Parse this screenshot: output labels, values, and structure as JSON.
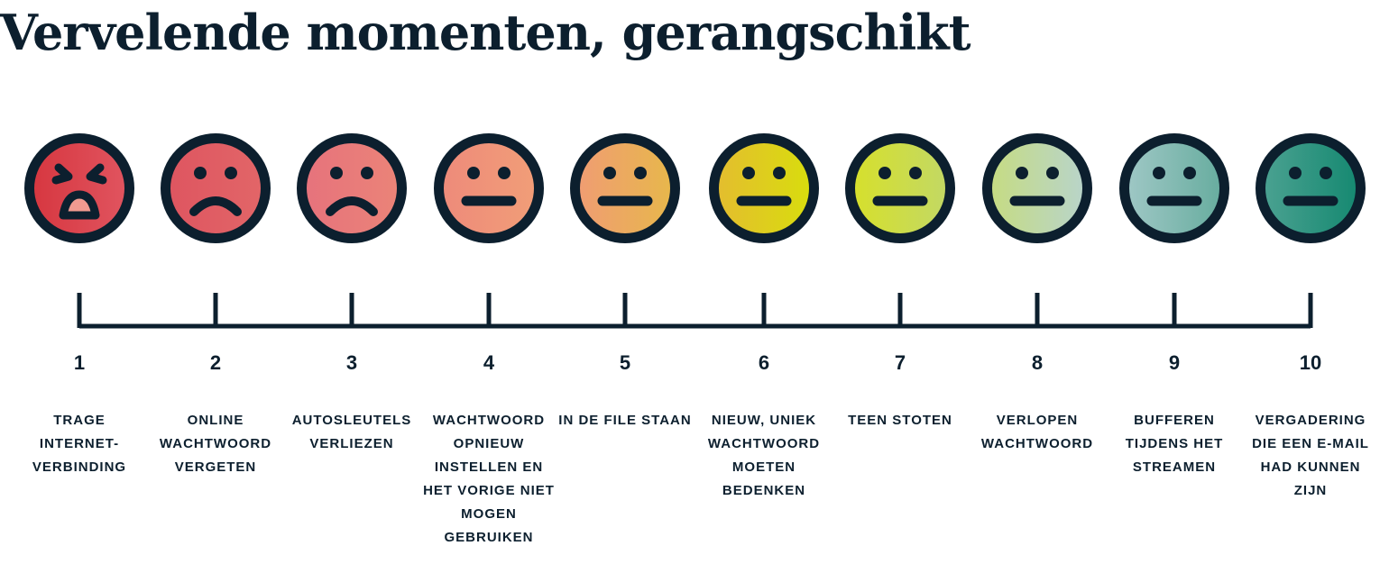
{
  "title": "Vervelende momenten, gerangschikt",
  "colors": {
    "ink": "#0c1f2e"
  },
  "items": [
    {
      "rank": "1",
      "label": "Trage internet-verbinding",
      "face": "angry-face-icon",
      "colors": [
        "#d6363f",
        "#e15560"
      ]
    },
    {
      "rank": "2",
      "label": "Online wachtwoord vergeten",
      "face": "sad-face-icon",
      "colors": [
        "#de5560",
        "#e26668"
      ]
    },
    {
      "rank": "3",
      "label": "Autosleutels verliezen",
      "face": "sad-face-icon",
      "colors": [
        "#e6727c",
        "#eb8478"
      ]
    },
    {
      "rank": "4",
      "label": "Wachtwoord opnieuw instellen en het vorige niet mogen gebruiken",
      "face": "neutral-face-icon",
      "colors": [
        "#ee8a7a",
        "#f19e78"
      ]
    },
    {
      "rank": "5",
      "label": "In de file staan",
      "face": "neutral-face-icon",
      "colors": [
        "#f09c74",
        "#e7b84a"
      ]
    },
    {
      "rank": "6",
      "label": "Nieuw, uniek wachtwoord moeten bedenken",
      "face": "neutral-face-icon",
      "colors": [
        "#e4bc30",
        "#d8de0c"
      ]
    },
    {
      "rank": "7",
      "label": "Teen stoten",
      "face": "neutral-face-icon",
      "colors": [
        "#d7e02a",
        "#c2d866"
      ]
    },
    {
      "rank": "8",
      "label": "Verlopen wachtwoord",
      "face": "neutral-face-icon",
      "colors": [
        "#c6dc80",
        "#b8d4cc"
      ]
    },
    {
      "rank": "9",
      "label": "Bufferen tijdens het streamen",
      "face": "neutral-face-icon",
      "colors": [
        "#a0c8c6",
        "#66ac9e"
      ]
    },
    {
      "rank": "10",
      "label": "Vergadering die een e-mail had kunnen zijn",
      "face": "neutral-face-icon",
      "colors": [
        "#4ca292",
        "#148870"
      ]
    }
  ]
}
